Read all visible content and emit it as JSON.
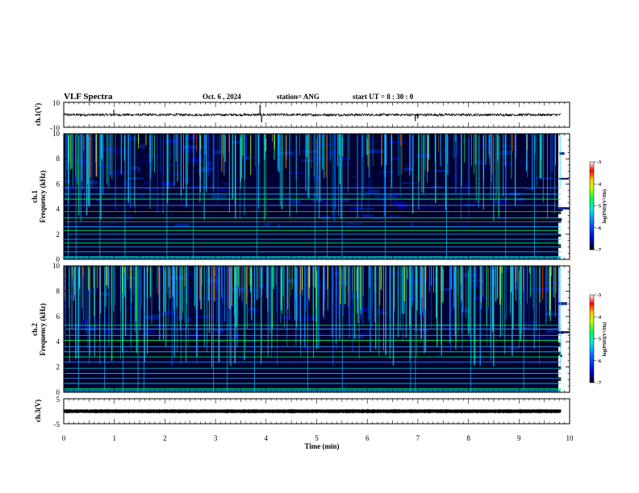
{
  "header": {
    "title": "VLF Spectra",
    "date": "Oct. 6  , 2024",
    "station": "station= ANG",
    "start": "start  UT =   8  : 30 : 0"
  },
  "chart_data": [
    {
      "type": "line",
      "panel": "ch1-waveform",
      "ylabel": "ch.1(V)",
      "ylim": [
        -10,
        10
      ],
      "ytick_labels": [
        "10",
        "-10"
      ],
      "xlim": [
        0,
        10
      ],
      "baseline": 0,
      "noise_amplitude": 1.0,
      "spikes": [
        {
          "t": 0.99,
          "v": 4
        },
        {
          "t": 3.88,
          "v": 8
        },
        {
          "t": 3.91,
          "v": -6
        },
        {
          "t": 6.95,
          "v": -5
        },
        {
          "t": 7.0,
          "v": -3
        }
      ],
      "data_end": 9.83
    },
    {
      "type": "heatmap",
      "panel": "ch1-spectrogram",
      "ylabel": [
        "ch.1",
        "Frequency  (kHz)"
      ],
      "ylim": [
        0,
        10
      ],
      "ytick_labels": [
        "0",
        "2",
        "4",
        "6",
        "8",
        "10"
      ],
      "xlim": [
        0,
        10
      ],
      "data_end": 9.83,
      "colorbar": {
        "label": "log(PSD)(V²/Hz)",
        "range": [
          -7,
          -3
        ],
        "tick_labels": [
          "-3",
          "-4",
          "-5",
          "-6",
          "-7"
        ]
      },
      "tone_lines_khz": [
        0.2,
        0.6,
        1.0,
        1.3,
        1.6,
        2.0,
        2.3,
        2.6,
        3.0,
        3.3,
        3.8,
        4.3,
        4.8,
        5.2,
        5.7
      ],
      "atmospheric_density": 1.0
    },
    {
      "type": "heatmap",
      "panel": "ch2-spectrogram",
      "ylabel": [
        "ch.2",
        "Frequency  (kHz)"
      ],
      "ylim": [
        0,
        10
      ],
      "ytick_labels": [
        "0",
        "2",
        "4",
        "6",
        "8",
        "10"
      ],
      "xlim": [
        0,
        10
      ],
      "data_end": 9.83,
      "colorbar": {
        "label": "log(PSD)(V²/Hz)",
        "range": [
          -7,
          -3
        ],
        "tick_labels": [
          "-3",
          "-4",
          "-5",
          "-6",
          "-7"
        ]
      },
      "tone_lines_khz": [
        0.3,
        0.7,
        1.1,
        1.5,
        1.9,
        2.4,
        2.8,
        3.2,
        3.6,
        4.1,
        4.5,
        5.0,
        5.3
      ],
      "atmospheric_density": 1.6
    },
    {
      "type": "line",
      "panel": "ch3-waveform",
      "ylabel": "ch.3(V)",
      "ylim": [
        -5,
        5
      ],
      "ytick_labels": [
        "5",
        "-5"
      ],
      "xlim": [
        0,
        10
      ],
      "baseline": 0,
      "noise_amplitude": 0.25,
      "data_end": 9.83
    }
  ],
  "x_axis": {
    "label": "Time  (min)",
    "tick_labels": [
      "0",
      "1",
      "2",
      "3",
      "4",
      "5",
      "6",
      "7",
      "8",
      "9",
      "10"
    ]
  },
  "colors": {
    "background": "#ffffff",
    "spectrogram_bg": "#000033",
    "colormap": [
      "#00005a",
      "#0000ff",
      "#00c8ff",
      "#00ff64",
      "#ffff00",
      "#ff0000",
      "#ffffff"
    ]
  }
}
